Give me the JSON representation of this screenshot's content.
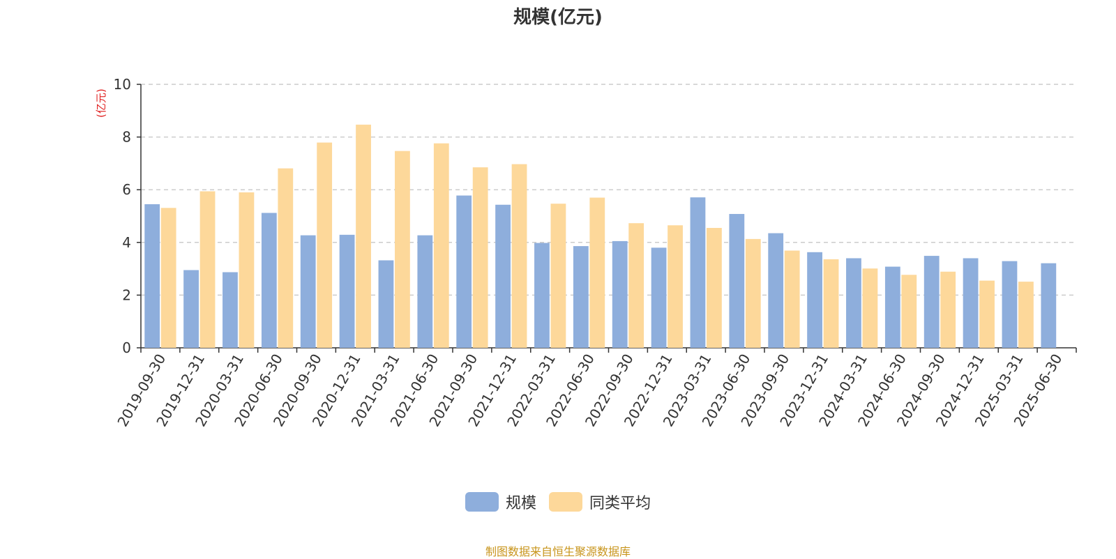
{
  "title": "规模(亿元)",
  "source_note": "制图数据来自恒生聚源数据库",
  "colors": {
    "series1": "#8eaedc",
    "series2": "#fdd89a",
    "ylabel": "#e02020",
    "axis": "#333333",
    "grid": "#cccccc"
  },
  "chart_data": {
    "type": "bar",
    "title": "规模(亿元)",
    "xlabel": "",
    "ylabel": "(亿元)",
    "ylim": [
      0,
      10
    ],
    "yticks": [
      0,
      2,
      4,
      6,
      8,
      10
    ],
    "grid": true,
    "legend_position": "bottom",
    "categories": [
      "2019-09-30",
      "2019-12-31",
      "2020-03-31",
      "2020-06-30",
      "2020-09-30",
      "2020-12-31",
      "2021-03-31",
      "2021-06-30",
      "2021-09-30",
      "2021-12-31",
      "2022-03-31",
      "2022-06-30",
      "2022-09-30",
      "2022-12-31",
      "2023-03-31",
      "2023-06-30",
      "2023-09-30",
      "2023-12-31",
      "2024-03-31",
      "2024-06-30",
      "2024-09-30",
      "2024-12-31",
      "2025-03-31",
      "2025-06-30"
    ],
    "series": [
      {
        "name": "规模",
        "values": [
          5.45,
          2.95,
          2.87,
          5.12,
          4.27,
          4.29,
          3.32,
          4.27,
          5.78,
          5.43,
          3.98,
          3.86,
          4.05,
          3.8,
          5.71,
          5.08,
          4.35,
          3.63,
          3.4,
          3.08,
          3.49,
          3.4,
          3.29,
          3.21
        ]
      },
      {
        "name": "同类平均",
        "values": [
          5.31,
          5.94,
          5.9,
          6.81,
          7.79,
          8.47,
          7.47,
          7.76,
          6.85,
          6.97,
          5.47,
          5.7,
          4.73,
          4.65,
          4.55,
          4.13,
          3.69,
          3.36,
          3.01,
          2.77,
          2.89,
          2.55,
          2.51,
          null
        ]
      }
    ]
  }
}
